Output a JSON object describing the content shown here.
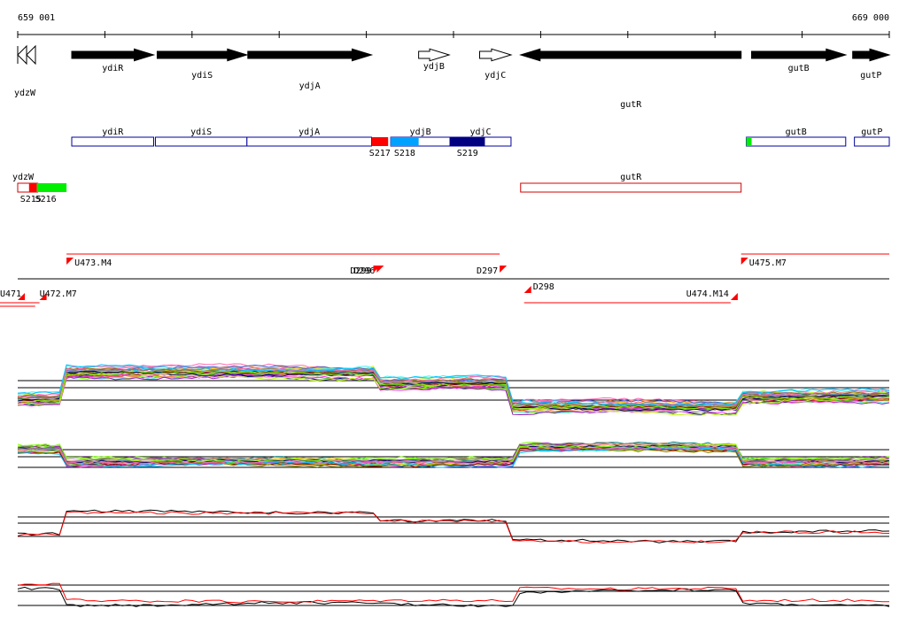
{
  "coords": {
    "start": "659 001",
    "end": "669 000"
  },
  "genes_top": [
    {
      "name": "ydzW",
      "strand": "-",
      "style": "outline",
      "from": 0,
      "to": 230
    },
    {
      "name": "ydiR",
      "strand": "+",
      "style": "solid",
      "from": 620,
      "to": 1560
    },
    {
      "name": "ydiS",
      "strand": "+",
      "style": "solid",
      "from": 1600,
      "to": 2630
    },
    {
      "name": "ydjA",
      "strand": "+",
      "style": "solid",
      "from": 2640,
      "to": 4060
    },
    {
      "name": "ydjB",
      "strand": "+",
      "style": "outline",
      "from": 4600,
      "to": 4950
    },
    {
      "name": "ydjC",
      "strand": "+",
      "style": "outline",
      "from": 5300,
      "to": 5660
    },
    {
      "name": "gutR",
      "strand": "-",
      "style": "solid",
      "from": 5770,
      "to": 8300
    },
    {
      "name": "gutB",
      "strand": "+",
      "style": "solid",
      "from": 8420,
      "to": 9500
    },
    {
      "name": "gutP",
      "strand": "+",
      "style": "solid",
      "from": 9580,
      "to": 10000
    }
  ],
  "transcripts_fwd": [
    {
      "name": "ydiR",
      "from": 620,
      "to": 1560
    },
    {
      "name": "ydiS",
      "from": 1580,
      "to": 2630
    },
    {
      "name": "ydjA",
      "from": 2630,
      "to": 4060
    },
    {
      "name": "ydjB",
      "from": 4280,
      "to": 4960
    },
    {
      "name": "ydjC",
      "from": 4960,
      "to": 5660
    },
    {
      "name": "gutB",
      "from": 8360,
      "to": 9500
    },
    {
      "name": "gutP",
      "from": 9600,
      "to": 10000
    }
  ],
  "transcripts_rev": [
    {
      "name": "ydzW",
      "from": 0,
      "to": 230
    },
    {
      "name": "gutR",
      "from": 5770,
      "to": 8300
    }
  ],
  "sites_fwd": [
    {
      "name": "S217",
      "from": 4060,
      "to": 4250,
      "color": "#ff0000"
    },
    {
      "name": "S218",
      "from": 4280,
      "to": 4600,
      "color": "#00a2ff"
    },
    {
      "name": "S219",
      "from": 4960,
      "to": 5360,
      "color": "#000080"
    },
    {
      "name": "",
      "from": 8360,
      "to": 8420,
      "color": "#00ee00"
    }
  ],
  "sites_rev": [
    {
      "name": "S215",
      "from": 130,
      "to": 220,
      "color": "#ff0000"
    },
    {
      "name": "S216",
      "from": 220,
      "to": 560,
      "color": "#00ee00"
    }
  ],
  "tu_labels_fwd": [
    {
      "name": "U473.M4",
      "pos": 560
    },
    {
      "name": "D296",
      "pos": 4120
    },
    {
      "name": "D299",
      "pos": 4080
    },
    {
      "name": "D297",
      "pos": 5530
    },
    {
      "name": "U475.M7",
      "pos": 8300
    }
  ],
  "tu_labels_rev": [
    {
      "name": "U471",
      "pos": 0
    },
    {
      "name": "U472.M7",
      "pos": 250
    },
    {
      "name": "D298",
      "pos": 5810
    },
    {
      "name": "U474.M14",
      "pos": 8180
    }
  ],
  "colors": {
    "gene": "#000000",
    "transcript_fwd": "#0000a0",
    "transcript_rev": "#d40000",
    "promoter": "#ff0000",
    "expr_a": "#000000",
    "expr_b": "#ff0000"
  }
}
